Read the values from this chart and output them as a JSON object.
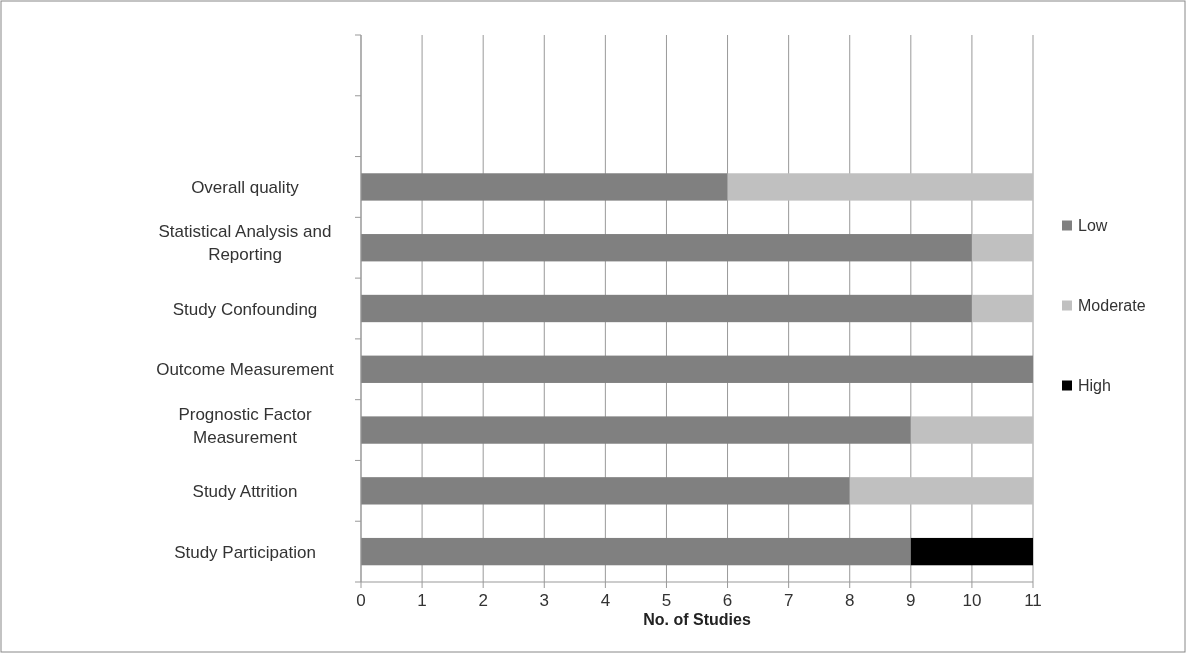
{
  "chart_data": {
    "type": "bar",
    "orientation": "horizontal",
    "stacked": true,
    "categories": [
      null,
      null,
      "Overall quality",
      "Statistical Analysis and Reporting",
      "Study Confounding",
      "Outcome Measurement",
      "Prognostic Factor Measurement",
      "Study Attrition",
      "Study Participation"
    ],
    "series": [
      {
        "name": "Low",
        "color": "#808080",
        "values": [
          null,
          null,
          6,
          10,
          10,
          11,
          9,
          8,
          9
        ]
      },
      {
        "name": "Moderate",
        "color": "#c0c0c0",
        "values": [
          null,
          null,
          5,
          1,
          1,
          0,
          2,
          3,
          0
        ]
      },
      {
        "name": "High",
        "color": "#000000",
        "values": [
          null,
          null,
          0,
          0,
          0,
          0,
          0,
          0,
          2
        ]
      }
    ],
    "xlim": [
      0,
      11
    ],
    "xticks": [
      0,
      1,
      2,
      3,
      4,
      5,
      6,
      7,
      8,
      9,
      10,
      11
    ],
    "xlabel": "No. of Studies",
    "grid": "x",
    "legend": "right"
  }
}
